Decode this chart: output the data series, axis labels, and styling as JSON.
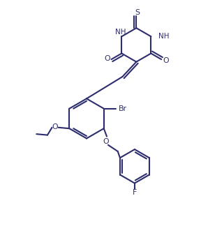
{
  "bg_color": "#ffffff",
  "line_color": "#2d2d6e",
  "line_width": 1.5,
  "figsize": [
    2.88,
    3.57
  ],
  "dpi": 100,
  "xlim": [
    0,
    10
  ],
  "ylim": [
    0,
    12.4
  ]
}
